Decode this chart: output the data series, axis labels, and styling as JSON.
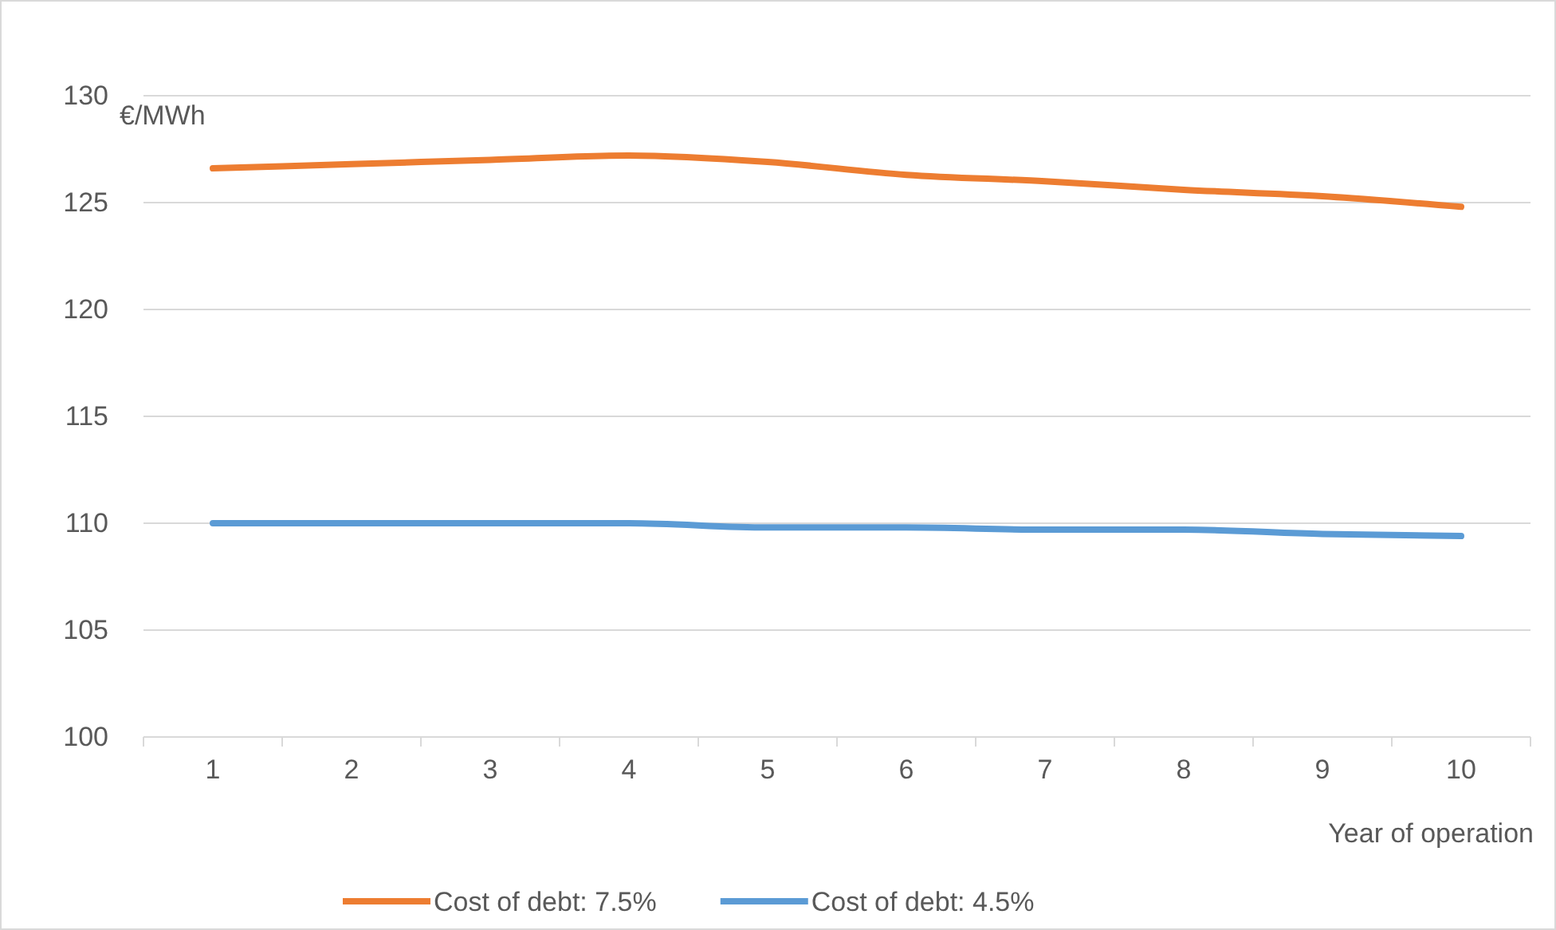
{
  "chart_data": {
    "type": "line",
    "ylabel": "€/MWh",
    "xlabel": "Year of operation",
    "categories": [
      "1",
      "2",
      "3",
      "4",
      "5",
      "6",
      "7",
      "8",
      "9",
      "10"
    ],
    "series": [
      {
        "name": "Cost of debt: 7.5%",
        "color": "#ed7d31",
        "values": [
          126.6,
          126.8,
          127.0,
          127.2,
          126.9,
          126.3,
          126.0,
          125.6,
          125.3,
          124.8
        ]
      },
      {
        "name": "Cost of debt: 4.5%",
        "color": "#5b9bd5",
        "values": [
          110.0,
          110.0,
          110.0,
          110.0,
          109.8,
          109.8,
          109.7,
          109.7,
          109.5,
          109.4
        ]
      }
    ],
    "ylim": [
      100,
      130
    ],
    "yticks": [
      100,
      105,
      110,
      115,
      120,
      125,
      130
    ],
    "grid": "y",
    "legend": "bottom",
    "marker": "none",
    "line_style": "solid"
  }
}
